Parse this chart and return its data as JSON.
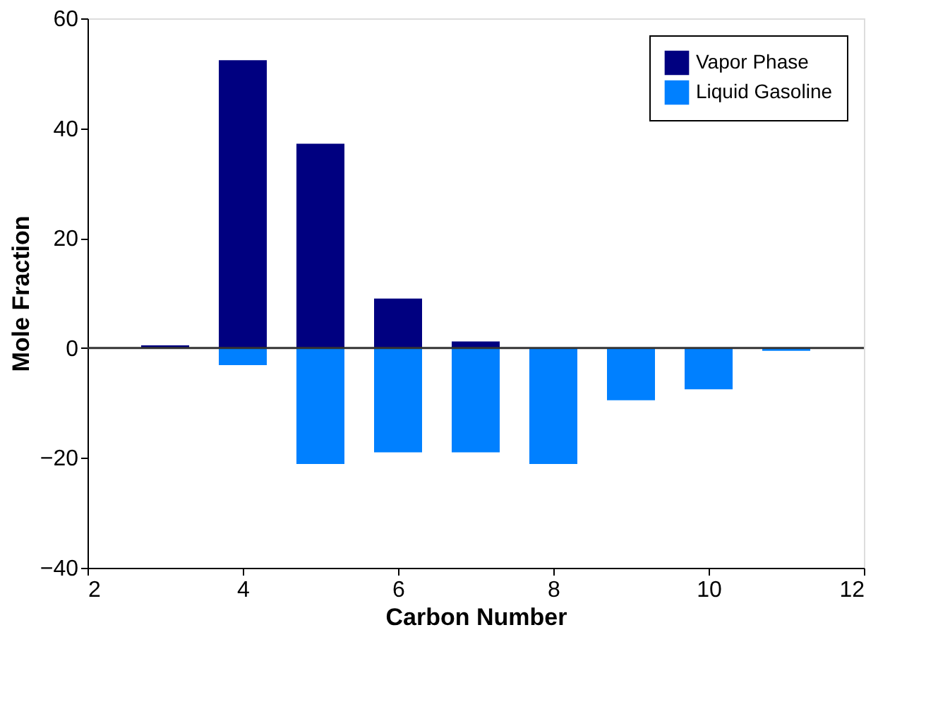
{
  "chart_data": {
    "type": "bar",
    "xlabel": "Carbon Number",
    "ylabel": "Mole Fraction",
    "x": [
      3,
      4,
      5,
      6,
      7,
      8,
      9,
      10,
      11
    ],
    "series": [
      {
        "name": "Vapor Phase",
        "color": "#000080",
        "values": [
          0.5,
          52.4,
          37.2,
          9.0,
          1.2,
          null,
          null,
          null,
          null
        ]
      },
      {
        "name": "Liquid Gasoline",
        "color": "#0080ff",
        "values": [
          null,
          -3.1,
          -21.1,
          -19.0,
          -19.0,
          -21.1,
          -9.5,
          -7.5,
          -0.5
        ]
      }
    ],
    "xlim": [
      2,
      12
    ],
    "xticks": [
      2,
      4,
      6,
      8,
      10,
      12
    ],
    "ylim": [
      -40,
      60
    ],
    "yticks": [
      -40,
      -20,
      0,
      20,
      40,
      60
    ],
    "ref_lines": [
      {
        "axis": "y",
        "value": 0
      }
    ],
    "grid": false,
    "legend": "top right"
  }
}
